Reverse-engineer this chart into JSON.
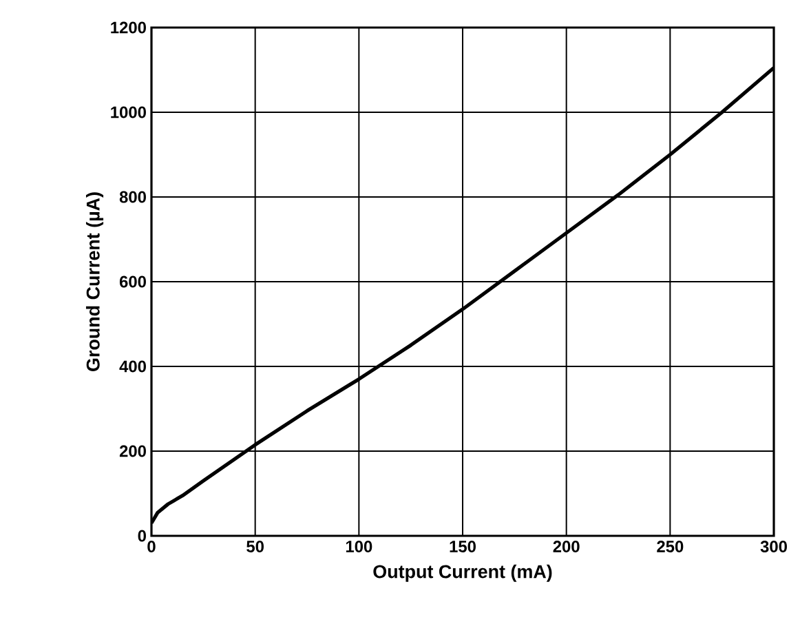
{
  "chart_data": {
    "type": "line",
    "xlabel": "Output Current (mA)",
    "ylabel": "Ground Current (µA)",
    "x": [
      0,
      3,
      8,
      15,
      25,
      50,
      75,
      100,
      125,
      150,
      175,
      200,
      225,
      250,
      275,
      300
    ],
    "series": [
      {
        "color": "#000000",
        "values": [
          30,
          55,
          75,
          95,
          130,
          215,
          295,
          370,
          450,
          535,
          625,
          715,
          805,
          900,
          1000,
          1105
        ]
      }
    ],
    "xlim": [
      0,
      300
    ],
    "ylim": [
      0,
      1200
    ],
    "xticks": [
      0,
      50,
      100,
      150,
      200,
      250,
      300
    ],
    "yticks": [
      0,
      200,
      400,
      600,
      800,
      1000,
      1200
    ],
    "grid": true,
    "marker": "none",
    "line_style": "solid"
  }
}
